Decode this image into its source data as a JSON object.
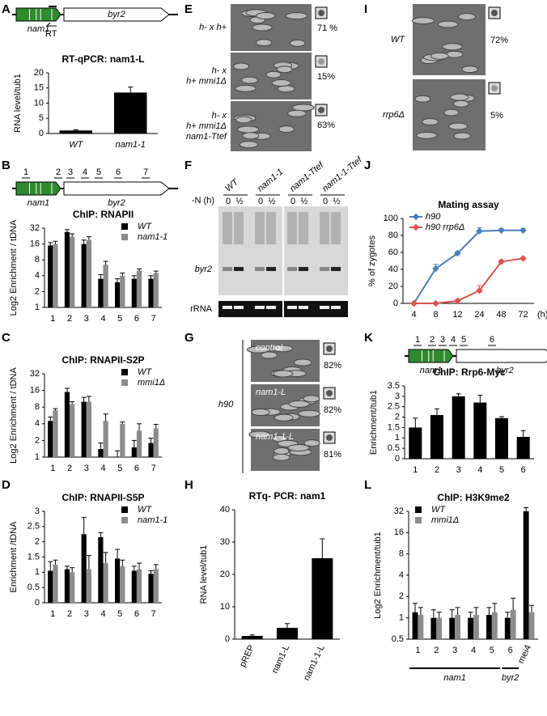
{
  "panel_labels": [
    "A",
    "B",
    "C",
    "D",
    "E",
    "F",
    "G",
    "H",
    "I",
    "J",
    "K",
    "L"
  ],
  "diagrams": {
    "A": {
      "gene1": "nam1",
      "gene2": "byr2",
      "primer": "RT"
    },
    "B": {
      "gene1": "nam1",
      "gene2": "byr2",
      "sites": [
        "1",
        "2",
        "3",
        "4",
        "5",
        "6",
        "7"
      ]
    },
    "K": {
      "gene1": "nam1",
      "gene2": "byr2",
      "sites": [
        "1",
        "2",
        "3",
        "4",
        "5",
        "6"
      ]
    }
  },
  "E": {
    "rows": [
      {
        "label": [
          "h- x h+"
        ],
        "percent": "71 %"
      },
      {
        "label": [
          "h- x",
          "h+ mmi1Δ"
        ],
        "percent": "15%"
      },
      {
        "label": [
          "h- x",
          "h+ mmi1Δ",
          "nam1-Ttef"
        ],
        "percent": "63%"
      }
    ]
  },
  "F": {
    "time_label": "-N (h)",
    "lanes": [
      "WT",
      "nam1-1",
      "nam1-Ttef",
      "nam1-1-Ttef"
    ],
    "times": [
      "0",
      "½"
    ],
    "band": "byr2",
    "loading": "rRNA"
  },
  "G": {
    "strain": "h90",
    "rows": [
      {
        "label": "control",
        "percent": "82%"
      },
      {
        "label": "nam1-L",
        "percent": "82%"
      },
      {
        "label": "nam1-1-L",
        "percent": "81%"
      }
    ]
  },
  "I": {
    "rows": [
      {
        "label": "WT",
        "percent": "72%"
      },
      {
        "label": "rrp6Δ",
        "percent": "5%"
      }
    ]
  },
  "chart_data": [
    {
      "type": "bar",
      "title": "RT-qPCR: nam1-L",
      "ylabel": "RNA level/tub1",
      "categories": [
        "WT",
        "nam1-1"
      ],
      "values": [
        1,
        13.5
      ],
      "errors": [
        0.2,
        1.8
      ],
      "color": "#000000",
      "ylim": [
        0,
        20
      ],
      "yticks": [
        0,
        5,
        10,
        15,
        20
      ]
    },
    {
      "type": "bar",
      "title": "ChIP: RNAPII",
      "ylabel": "Log2 Enrichment / tDNA",
      "log_scale": true,
      "categories": [
        "1",
        "2",
        "3",
        "4",
        "5",
        "6",
        "7"
      ],
      "series": [
        {
          "name": "WT",
          "color": "#000000",
          "values": [
            15,
            27,
            16,
            3.5,
            3,
            3.5,
            3.5
          ],
          "errors": [
            2,
            3,
            3,
            0.7,
            0.5,
            0.5,
            0.5
          ]
        },
        {
          "name": "nam1-1",
          "color": "#8c8c8c",
          "values": [
            16,
            22,
            19,
            6.5,
            4,
            5,
            4.5
          ],
          "errors": [
            2,
            3,
            3,
            1,
            0.5,
            0.4,
            0.4
          ]
        }
      ],
      "ylim": [
        1,
        32
      ],
      "yticks": [
        1,
        2,
        4,
        8,
        16,
        32
      ],
      "legend": "upper right"
    },
    {
      "type": "bar",
      "title": "ChIP: RNAPII-S2P",
      "ylabel": "Log2 Enrichment / tDNA",
      "log_scale": true,
      "categories": [
        "1",
        "2",
        "3",
        "4",
        "5",
        "6",
        "7"
      ],
      "series": [
        {
          "name": "WT",
          "color": "#000000",
          "values": [
            4.5,
            15,
            10,
            1.4,
            1,
            1.5,
            1.8
          ],
          "errors": [
            0.8,
            2.5,
            2,
            0.4,
            0.3,
            0.5,
            0.4
          ]
        },
        {
          "name": "mmi1Δ",
          "color": "#8c8c8c",
          "values": [
            7,
            9,
            10,
            4.5,
            4,
            3,
            3.3
          ],
          "errors": [
            0.5,
            1,
            2.5,
            1.5,
            0.3,
            1,
            0.6
          ]
        }
      ],
      "ylim": [
        1,
        32
      ],
      "yticks": [
        1,
        2,
        4,
        8,
        16,
        32
      ],
      "legend": "upper right"
    },
    {
      "type": "bar",
      "title": "ChIP: RNAPII-S5P",
      "ylabel": "Enrichment /tDNA",
      "categories": [
        "1",
        "2",
        "3",
        "4",
        "5",
        "6",
        "7"
      ],
      "series": [
        {
          "name": "WT",
          "color": "#000000",
          "values": [
            1.05,
            1.1,
            2.25,
            2.15,
            1.45,
            1.05,
            0.95
          ],
          "errors": [
            0.3,
            0.1,
            0.55,
            0.15,
            0.3,
            0.15,
            0.1
          ]
        },
        {
          "name": "nam1-1",
          "color": "#8c8c8c",
          "values": [
            1.25,
            1.0,
            1.1,
            1.3,
            1.2,
            1.1,
            1.1
          ],
          "errors": [
            0.15,
            0.15,
            0.45,
            0.35,
            0.2,
            0.2,
            0.15
          ]
        }
      ],
      "ylim": [
        0,
        3
      ],
      "yticks": [
        0,
        0.5,
        1,
        1.5,
        2,
        2.5,
        3
      ],
      "legend": "upper right"
    },
    {
      "type": "bar",
      "title": "RTq- PCR: nam1",
      "ylabel": "RNA level/tub1",
      "categories": [
        "pREP",
        "nam1-L",
        "nam1-1-L"
      ],
      "values": [
        1,
        3.5,
        25
      ],
      "errors": [
        0.3,
        1.3,
        6
      ],
      "color": "#000000",
      "ylim": [
        0,
        40
      ],
      "yticks": [
        0,
        10,
        20,
        30,
        40
      ]
    },
    {
      "type": "line",
      "title": "Mating assay",
      "ylabel": "% of zygotes",
      "xlabel": "(h)",
      "categories": [
        "4",
        "8",
        "12",
        "24",
        "48",
        "72"
      ],
      "series": [
        {
          "name": "h90",
          "color": "#4a7ebb",
          "values": [
            0,
            41,
            59,
            85,
            86,
            86
          ],
          "errors": [
            0,
            5,
            2,
            4,
            2,
            2
          ]
        },
        {
          "name": "h90 rrp6Δ",
          "color": "#d9534f",
          "values": [
            0,
            0,
            3,
            15,
            49,
            53
          ],
          "errors": [
            0,
            0,
            1,
            6,
            2,
            1
          ]
        }
      ],
      "ylim": [
        0,
        100
      ],
      "yticks": [
        0,
        20,
        40,
        60,
        80,
        100
      ],
      "legend": "upper left"
    },
    {
      "type": "bar",
      "title": "ChIP: Rrp6-Myc",
      "ylabel": "Enrichment/tub1",
      "categories": [
        "1",
        "2",
        "3",
        "4",
        "5",
        "6"
      ],
      "values": [
        1.5,
        2.1,
        3.0,
        2.7,
        1.95,
        1.05
      ],
      "errors": [
        0.45,
        0.3,
        0.12,
        0.35,
        0.07,
        0.3
      ],
      "color": "#000000",
      "ylim": [
        0,
        3.5
      ],
      "yticks": [
        0,
        0.5,
        1,
        1.5,
        2,
        2.5,
        3,
        3.5
      ]
    },
    {
      "type": "bar",
      "title": "ChIP: H3K9me2",
      "ylabel": "Log2 Enrichment/tub1",
      "log_scale": true,
      "categories": [
        "1",
        "2",
        "3",
        "4",
        "5",
        "6",
        "mei4"
      ],
      "group_labels": [
        "nam1",
        "byr2"
      ],
      "series": [
        {
          "name": "WT",
          "color": "#000000",
          "values": [
            1.2,
            1,
            1,
            1,
            1.1,
            1,
            32
          ],
          "errors": [
            0.4,
            0.3,
            0.3,
            0.2,
            0.3,
            0.2,
            4
          ]
        },
        {
          "name": "mmi1Δ",
          "color": "#8c8c8c",
          "values": [
            1.1,
            1,
            1.1,
            1.1,
            1.2,
            1.3,
            1.2
          ],
          "errors": [
            0.3,
            0.2,
            0.3,
            0.3,
            0.4,
            0.6,
            0.3
          ]
        }
      ],
      "ylim": [
        0.5,
        32
      ],
      "yticks": [
        0.5,
        1,
        2,
        4,
        8,
        16,
        32
      ],
      "legend": "upper left"
    }
  ]
}
